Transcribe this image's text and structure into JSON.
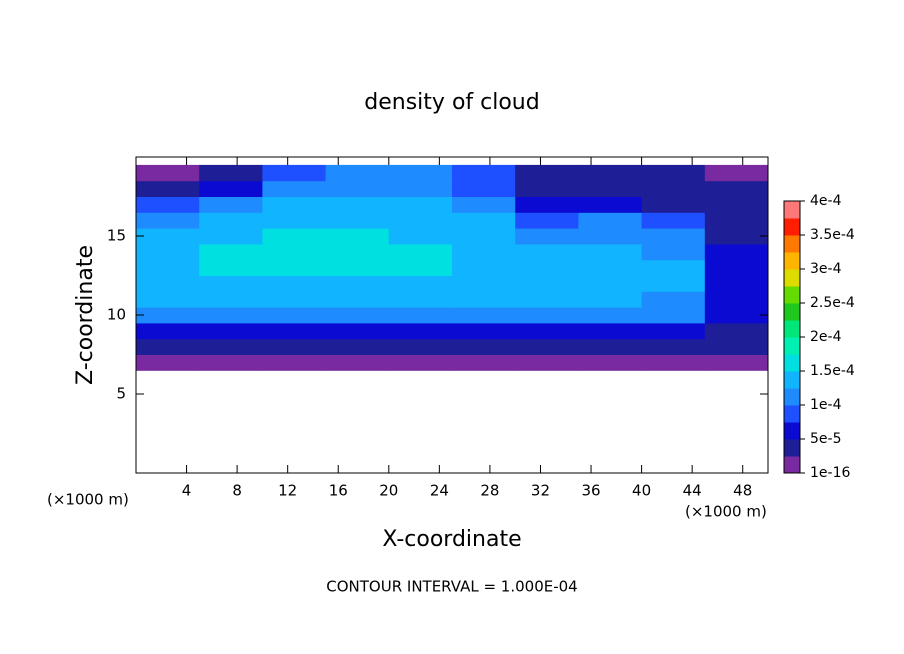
{
  "chart_data": {
    "type": "contour",
    "title": "density of cloud",
    "x_label": "X-coordinate",
    "y_label": "Z-coordinate",
    "x_unit": "(×1000 m)",
    "y_unit": "(×1000 m)",
    "footer": "CONTOUR INTERVAL = 1.000E-04",
    "xlim": [
      0,
      50
    ],
    "xticks": [
      4,
      8,
      12,
      16,
      20,
      24,
      28,
      32,
      36,
      40,
      44,
      48
    ],
    "ylim": [
      0,
      20
    ],
    "yticks": [
      5,
      10,
      15
    ],
    "x": [
      2.5,
      7.5,
      12.5,
      17.5,
      22.5,
      27.5,
      32.5,
      37.5,
      42.5,
      47.5
    ],
    "y": [
      7,
      8,
      9,
      10,
      11,
      12,
      13,
      14,
      15,
      16,
      17,
      18,
      19
    ],
    "z": [
      [
        2e-05,
        2e-05,
        2e-05,
        2e-05,
        2e-05,
        2e-05,
        2e-05,
        2e-05,
        2e-05,
        2e-05
      ],
      [
        4e-05,
        4e-05,
        4e-05,
        4e-05,
        4e-05,
        4e-05,
        4e-05,
        4e-05,
        4e-05,
        4e-05
      ],
      [
        7e-05,
        7e-05,
        7e-05,
        7e-05,
        7e-05,
        7e-05,
        7e-05,
        7e-05,
        7e-05,
        5e-05
      ],
      [
        0.000105,
        0.00011,
        0.00011,
        0.00011,
        0.00011,
        0.00011,
        0.00011,
        0.00011,
        0.000105,
        6e-05
      ],
      [
        0.00013,
        0.000135,
        0.000135,
        0.000135,
        0.000135,
        0.000135,
        0.00013,
        0.00013,
        0.000125,
        6e-05
      ],
      [
        0.000145,
        0.00015,
        0.00015,
        0.00015,
        0.00015,
        0.000145,
        0.000135,
        0.000135,
        0.00013,
        6e-05
      ],
      [
        0.00015,
        0.000155,
        0.00016,
        0.00016,
        0.000155,
        0.00015,
        0.000135,
        0.000135,
        0.00013,
        7e-05
      ],
      [
        0.00015,
        0.000155,
        0.00016,
        0.00016,
        0.000155,
        0.000145,
        0.00013,
        0.00013,
        0.00012,
        6e-05
      ],
      [
        0.00014,
        0.00015,
        0.000155,
        0.000155,
        0.00015,
        0.00014,
        0.00012,
        0.00012,
        0.00011,
        5e-05
      ],
      [
        0.00012,
        0.00014,
        0.000145,
        0.000145,
        0.00014,
        0.00013,
        9e-05,
        0.000105,
        9e-05,
        4e-05
      ],
      [
        9e-05,
        0.00012,
        0.00013,
        0.00013,
        0.00013,
        0.000115,
        6e-05,
        6e-05,
        5e-05,
        3e-05
      ],
      [
        4e-05,
        7e-05,
        0.000115,
        0.00012,
        0.00012,
        0.0001,
        5e-05,
        4e-05,
        3e-05,
        3e-05
      ],
      [
        2e-05,
        4e-05,
        9e-05,
        0.000105,
        0.000105,
        8e-05,
        4e-05,
        3e-05,
        3e-05,
        2e-05
      ]
    ],
    "colorbar_ticks": [
      {
        "value": 1e-16,
        "label": "1e-16"
      },
      {
        "value": 5e-05,
        "label": "5e-5"
      },
      {
        "value": 0.0001,
        "label": "1e-4"
      },
      {
        "value": 0.00015,
        "label": "1.5e-4"
      },
      {
        "value": 0.0002,
        "label": "2e-4"
      },
      {
        "value": 0.00025,
        "label": "2.5e-4"
      },
      {
        "value": 0.0003,
        "label": "3e-4"
      },
      {
        "value": 0.00035,
        "label": "3.5e-4"
      },
      {
        "value": 0.0004,
        "label": "4e-4"
      }
    ],
    "colors": [
      "#7a2aa0",
      "#1e1e96",
      "#0a0ad2",
      "#1e50ff",
      "#1e8cff",
      "#10b4ff",
      "#00e0e0",
      "#00f0b4",
      "#00e678",
      "#1ec81e",
      "#64dc00",
      "#dcdc00",
      "#ffb400",
      "#ff7800",
      "#ff1e00",
      "#ff7878"
    ]
  }
}
